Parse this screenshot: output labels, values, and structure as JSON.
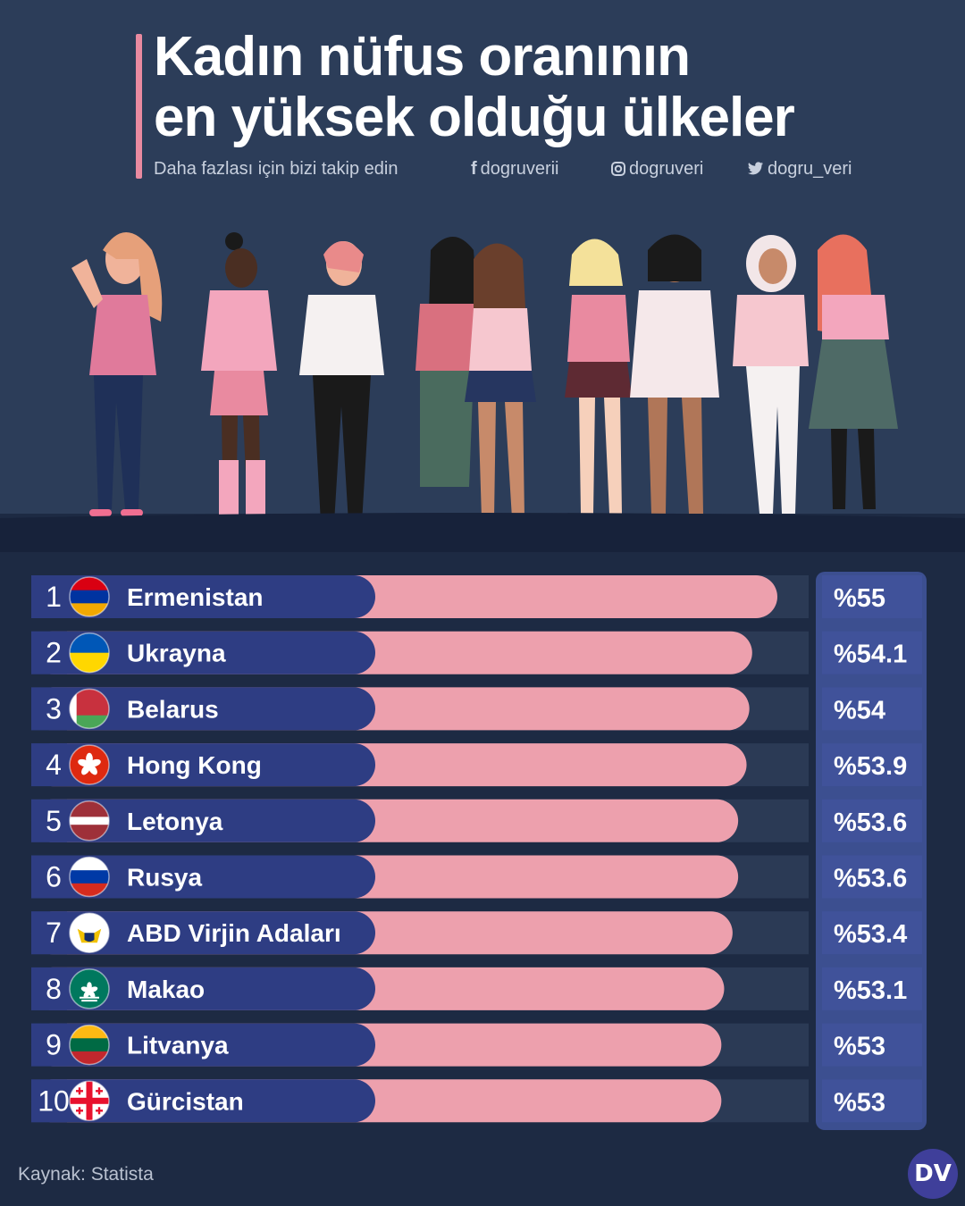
{
  "title": {
    "line1": "Kadın nüfus oranının",
    "line2": "en yüksek olduğu ülkeler"
  },
  "follow": {
    "text": "Daha fazlası için bizi takip edin",
    "facebook": "dogruverii",
    "instagram": "dogruveri",
    "twitter": "dogru_veri",
    "facebook_icon": "facebook-icon",
    "instagram_icon": "instagram-icon",
    "twitter_icon": "twitter-icon"
  },
  "chart_data": {
    "type": "bar",
    "orientation": "horizontal",
    "ranks": [
      "1",
      "2",
      "3",
      "4",
      "5",
      "6",
      "7",
      "8",
      "9",
      "10"
    ],
    "categories": [
      "Ermenistan",
      "Ukrayna",
      "Belarus",
      "Hong Kong",
      "Letonya",
      "Rusya",
      "ABD Virjin Adaları",
      "Makao",
      "Litvanya",
      "Gürcistan"
    ],
    "values": [
      55,
      54.1,
      54,
      53.9,
      53.6,
      53.6,
      53.4,
      53.1,
      53,
      53
    ],
    "value_labels": [
      "%55",
      "%54.1",
      "%54",
      "%53.9",
      "%53.6",
      "%53.6",
      "%53.4",
      "%53.1",
      "%53",
      "%53"
    ],
    "flags": [
      "flag-armenia",
      "flag-ukraine",
      "flag-belarus",
      "flag-hong-kong",
      "flag-latvia",
      "flag-russia",
      "flag-us-virgin-islands",
      "flag-macau",
      "flag-lithuania",
      "flag-georgia"
    ],
    "colors": {
      "bar": "#eda0ad",
      "label_box": "#2e3d83",
      "track": "#2b3a55",
      "value_panel": "#3c4f90",
      "value_box": "#40529a"
    }
  },
  "source": "Kaynak: Statista",
  "logo": "DV"
}
